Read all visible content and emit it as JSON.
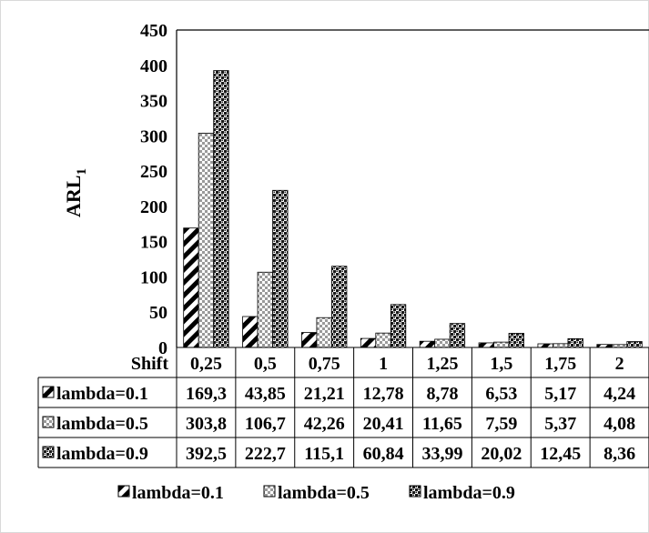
{
  "chart_data": {
    "type": "bar",
    "ylabel": "ARL",
    "ylabel_subscript": "1",
    "ylim": [
      0,
      450
    ],
    "yticks": [
      "0",
      "50",
      "100",
      "150",
      "200",
      "250",
      "300",
      "350",
      "400",
      "450"
    ],
    "x_header": "Shift",
    "categories": [
      "0,25",
      "0,5",
      "0,75",
      "1",
      "1,25",
      "1,5",
      "1,75",
      "2"
    ],
    "series": [
      {
        "name": "lambda=0.1",
        "values": [
          169.3,
          43.85,
          21.21,
          12.78,
          8.78,
          6.53,
          5.17,
          4.24
        ],
        "labels": [
          "169,3",
          "43,85",
          "21,21",
          "12,78",
          "8,78",
          "6,53",
          "5,17",
          "4,24"
        ],
        "pattern": "diagonal-stripes"
      },
      {
        "name": "lambda=0.5",
        "values": [
          303.8,
          106.7,
          42.26,
          20.41,
          11.65,
          7.59,
          5.37,
          4.08
        ],
        "labels": [
          "303,8",
          "106,7",
          "42,26",
          "20,41",
          "11,65",
          "7,59",
          "5,37",
          "4,08"
        ],
        "pattern": "light-checker"
      },
      {
        "name": "lambda=0.9",
        "values": [
          392.5,
          222.7,
          115.1,
          60.84,
          33.99,
          20.02,
          12.45,
          8.36
        ],
        "labels": [
          "392,5",
          "222,7",
          "115,1",
          "60,84",
          "33,99",
          "20,02",
          "12,45",
          "8,36"
        ],
        "pattern": "dark-checker"
      }
    ],
    "grid": false,
    "legend_position": "bottom"
  }
}
